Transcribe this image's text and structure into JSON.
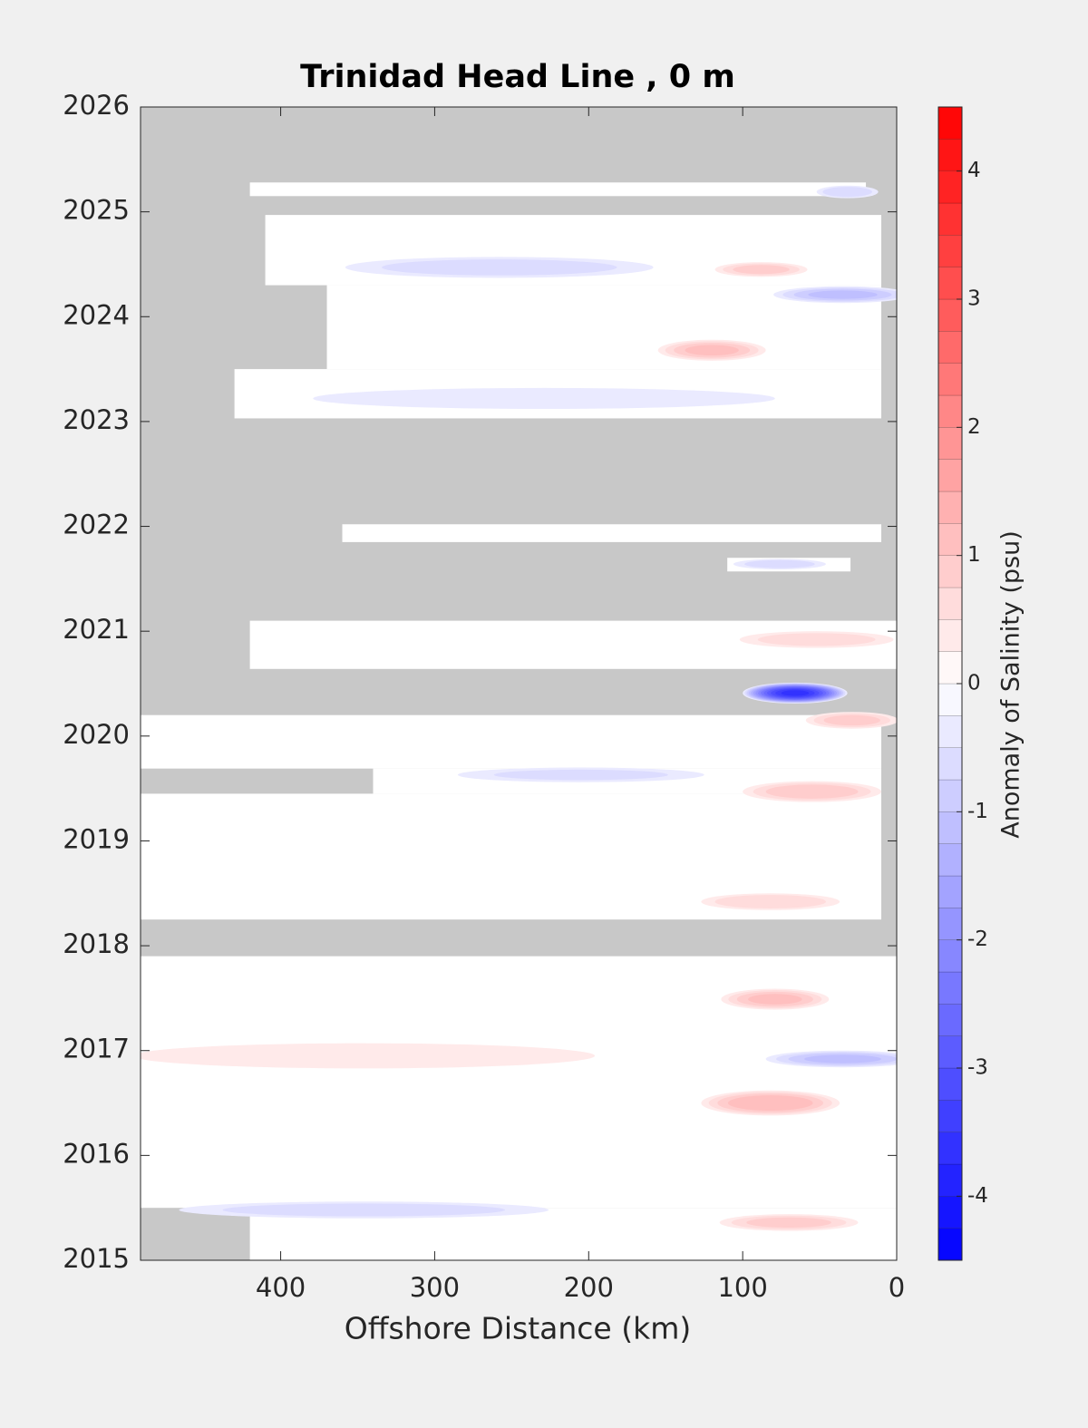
{
  "chart_data": {
    "type": "contourf",
    "title": "Trinidad Head Line , 0 m",
    "x_label": "Offshore Distance (km)",
    "colorbar_label": "Anomaly of Salinity (psu)",
    "xlim": [
      491,
      0
    ],
    "xticks": [
      400,
      300,
      200,
      100,
      0
    ],
    "ylim": [
      2015,
      2026
    ],
    "yticks": [
      2015,
      2016,
      2017,
      2018,
      2019,
      2020,
      2021,
      2022,
      2023,
      2024,
      2025,
      2026
    ],
    "clim": [
      -4.5,
      4.5
    ],
    "cticks": [
      -4,
      -3,
      -2,
      -1,
      0,
      1,
      2,
      3,
      4
    ],
    "no_data_color": "#c8c8c8",
    "positive_color": "#ff0000",
    "negative_color": "#0000ff",
    "coverage": [
      {
        "t": [
          2025.15,
          2025.28
        ],
        "x": [
          420,
          20
        ]
      },
      {
        "t": [
          2024.3,
          2024.97
        ],
        "x": [
          410,
          10
        ]
      },
      {
        "t": [
          2023.5,
          2024.3
        ],
        "x": [
          370,
          10
        ]
      },
      {
        "t": [
          2023.03,
          2023.5
        ],
        "x": [
          430,
          10
        ]
      },
      {
        "t": [
          2021.85,
          2022.02
        ],
        "x": [
          360,
          10
        ]
      },
      {
        "t": [
          2021.57,
          2021.7
        ],
        "x": [
          110,
          30
        ]
      },
      {
        "t": [
          2020.64,
          2021.1
        ],
        "x": [
          420,
          0
        ]
      },
      {
        "t": [
          2019.69,
          2020.2
        ],
        "x": [
          491,
          10
        ]
      },
      {
        "t": [
          2019.45,
          2019.69
        ],
        "x": [
          340,
          10
        ]
      },
      {
        "t": [
          2018.25,
          2019.45
        ],
        "x": [
          491,
          10
        ]
      },
      {
        "t": [
          2015.5,
          2017.9
        ],
        "x": [
          491,
          0
        ]
      },
      {
        "t": [
          2015,
          2015.5
        ],
        "x": [
          420,
          0
        ]
      }
    ],
    "anomalies": [
      {
        "x": 66,
        "t": 2020.41,
        "value": -3.5,
        "dx": 34,
        "dt": 0.1
      },
      {
        "x": 82,
        "t": 2016.5,
        "value": 1.2,
        "dx": 45,
        "dt": 0.12
      },
      {
        "x": 79,
        "t": 2017.49,
        "value": 1.0,
        "dx": 35,
        "dt": 0.1
      },
      {
        "x": 55,
        "t": 2019.47,
        "value": 0.9,
        "dx": 45,
        "dt": 0.1
      },
      {
        "x": 120,
        "t": 2023.68,
        "value": 1.0,
        "dx": 35,
        "dt": 0.1
      },
      {
        "x": 35,
        "t": 2024.21,
        "value": -1.0,
        "dx": 45,
        "dt": 0.08
      },
      {
        "x": 88,
        "t": 2024.45,
        "value": 0.8,
        "dx": 30,
        "dt": 0.07
      },
      {
        "x": 258,
        "t": 2024.47,
        "value": -0.6,
        "dx": 100,
        "dt": 0.1
      },
      {
        "x": 35,
        "t": 2016.92,
        "value": -1.0,
        "dx": 50,
        "dt": 0.08
      },
      {
        "x": 29,
        "t": 2020.15,
        "value": 0.8,
        "dx": 30,
        "dt": 0.08
      },
      {
        "x": 346,
        "t": 2015.48,
        "value": -0.6,
        "dx": 120,
        "dt": 0.08
      },
      {
        "x": 82,
        "t": 2018.42,
        "value": 0.7,
        "dx": 45,
        "dt": 0.08
      },
      {
        "x": 205,
        "t": 2019.63,
        "value": -0.5,
        "dx": 80,
        "dt": 0.07
      },
      {
        "x": 229,
        "t": 2023.22,
        "value": -0.4,
        "dx": 150,
        "dt": 0.1
      },
      {
        "x": 346,
        "t": 2016.95,
        "value": 0.4,
        "dx": 150,
        "dt": 0.12
      },
      {
        "x": 70,
        "t": 2015.36,
        "value": 0.8,
        "dx": 45,
        "dt": 0.08
      },
      {
        "x": 52,
        "t": 2020.92,
        "value": 0.6,
        "dx": 50,
        "dt": 0.08
      },
      {
        "x": 76,
        "t": 2021.64,
        "value": -0.6,
        "dx": 30,
        "dt": 0.05
      },
      {
        "x": 32,
        "t": 2025.19,
        "value": -0.7,
        "dx": 20,
        "dt": 0.06
      }
    ]
  }
}
